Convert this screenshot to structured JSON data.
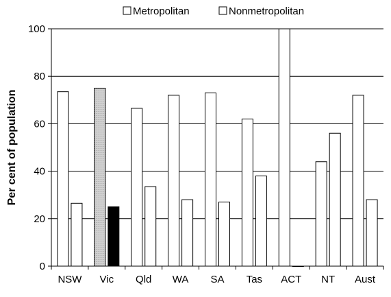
{
  "chart_data": {
    "type": "bar",
    "categories": [
      "NSW",
      "Vic",
      "Qld",
      "WA",
      "SA",
      "Tas",
      "ACT",
      "NT",
      "Aust"
    ],
    "series": [
      {
        "name": "Metropolitan",
        "values": [
          73.5,
          75,
          66.5,
          72,
          73,
          62,
          100,
          44,
          72
        ],
        "color": "#ffffff",
        "highlight": {
          "Vic": "#c8c8c8"
        }
      },
      {
        "name": "Nonmetropolitan",
        "values": [
          26.5,
          25,
          33.5,
          28,
          27,
          38,
          0,
          56,
          28
        ],
        "color": "#ffffff",
        "highlight": {
          "Vic": "#000000"
        }
      }
    ],
    "ylabel": "Per cent of population",
    "ylim": [
      0,
      100
    ],
    "yticks": [
      0,
      20,
      40,
      60,
      80,
      100
    ],
    "grid": true,
    "legend": "top"
  }
}
